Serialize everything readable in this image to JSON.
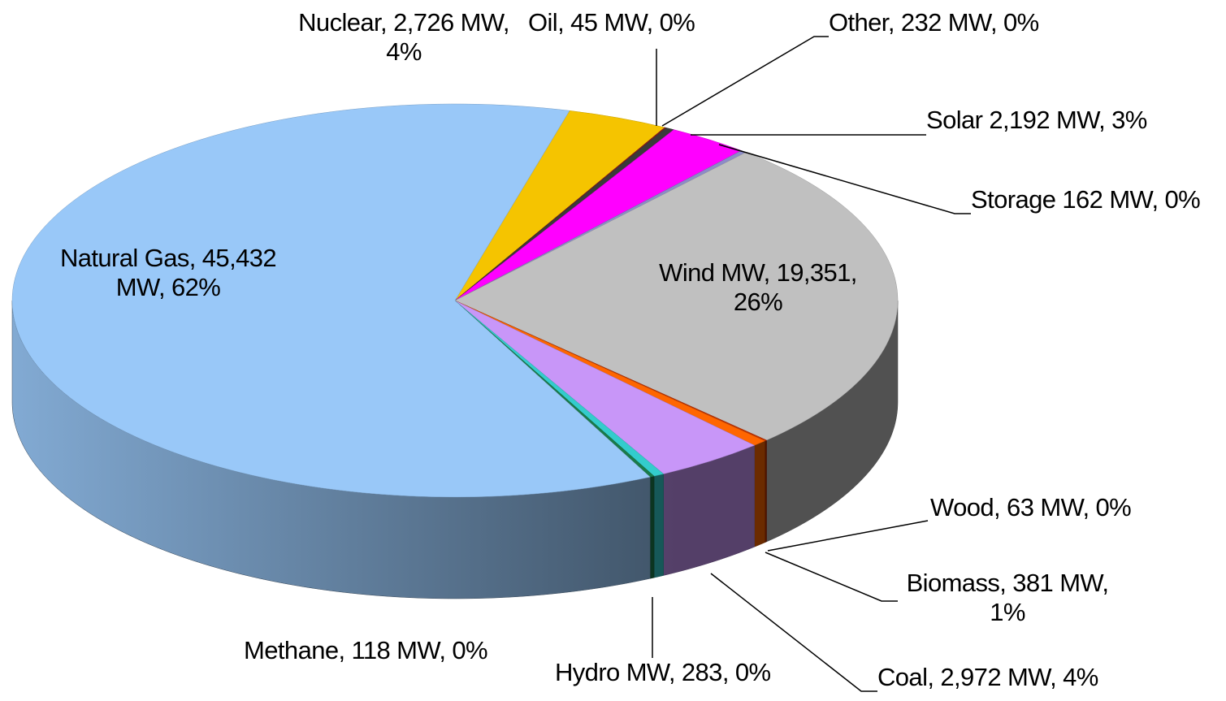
{
  "chart_data": {
    "type": "pie3d",
    "values": [
      2726,
      45,
      232,
      2192,
      162,
      19351,
      63,
      381,
      2972,
      283,
      118,
      45432
    ],
    "value_labels": [
      "Nuclear, 2,726 MW, 4%",
      "Oil, 45 MW, 0%",
      "Other, 232 MW, 0%",
      "Solar 2,192 MW, 3%",
      "Storage 162 MW, 0%",
      "Wind MW, 19,351, 26%",
      "Wood, 63 MW, 0%",
      "Biomass, 381 MW, 1%",
      "Coal, 2,972 MW, 4%",
      "Hydro MW, 283, 0%",
      "Methane, 118 MW, 0%",
      "Natural Gas, 45,432 MW, 62%"
    ],
    "colors": [
      "#f5c400",
      "#8b1a1a",
      "#3a3a3a",
      "#ff00ff",
      "#8c8cc8",
      "#c0c0c0",
      "#c03000",
      "#ff6600",
      "#c896f8",
      "#33cccc",
      "#1a7a4a",
      "#99c8f8"
    ]
  }
}
